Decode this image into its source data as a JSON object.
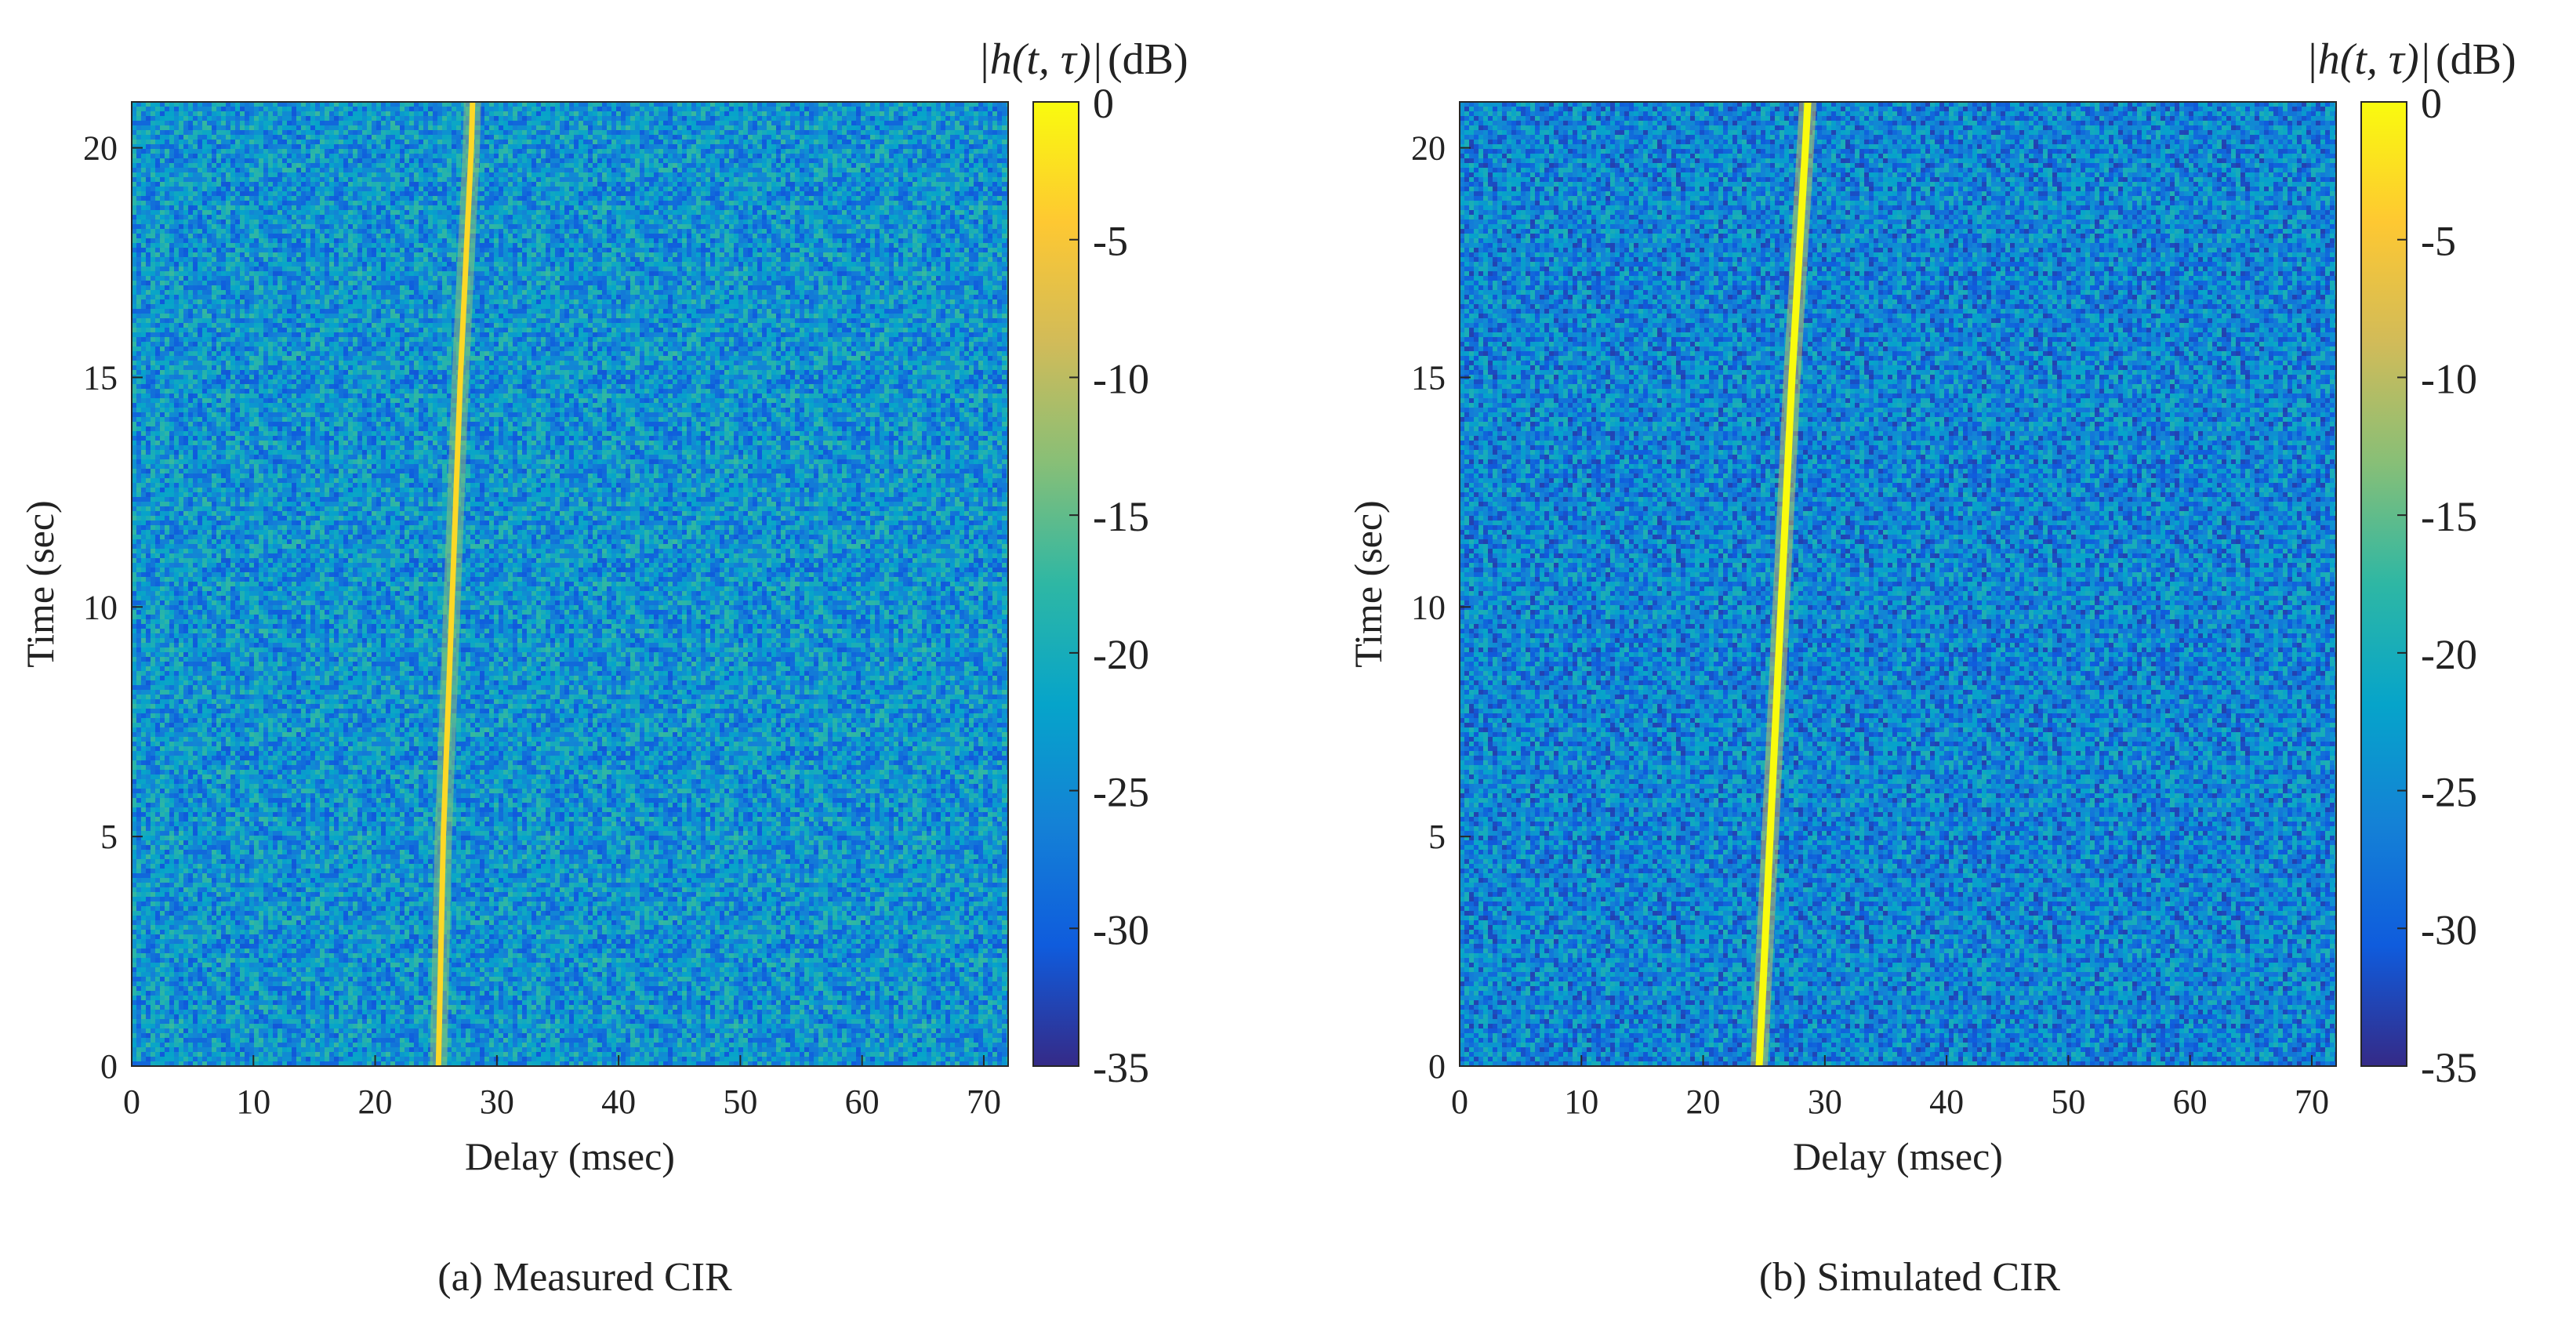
{
  "chart_data": [
    {
      "type": "heatmap",
      "xlabel": "Delay (msec)",
      "ylabel": "Time (sec)",
      "caption": "(a) Measured CIR",
      "colorbar_label_main": "|h(t, τ)|",
      "colorbar_label_unit": "(dB)",
      "xlim": [
        0,
        72
      ],
      "ylim": [
        0,
        21
      ],
      "clim": [
        -35,
        0
      ],
      "x_ticks": [
        0,
        10,
        20,
        30,
        40,
        50,
        60,
        70
      ],
      "y_ticks": [
        0,
        5,
        10,
        15,
        20
      ],
      "c_ticks": [
        0,
        -5,
        -10,
        -15,
        -20,
        -25,
        -30,
        -35
      ],
      "colormap": "parula",
      "background_level_db": -24,
      "ridge_peak_db": -3,
      "ridge": [
        {
          "time": 0,
          "delay": 25.2
        },
        {
          "time": 5,
          "delay": 25.6
        },
        {
          "time": 10,
          "delay": 26.3
        },
        {
          "time": 15,
          "delay": 27.0
        },
        {
          "time": 20,
          "delay": 27.9
        },
        {
          "time": 21,
          "delay": 28.0
        }
      ]
    },
    {
      "type": "heatmap",
      "xlabel": "Delay (msec)",
      "ylabel": "Time (sec)",
      "caption": "(b) Simulated CIR",
      "colorbar_label_main": "|h(t, τ)|",
      "colorbar_label_unit": "(dB)",
      "xlim": [
        0,
        72
      ],
      "ylim": [
        0,
        21
      ],
      "clim": [
        -35,
        0
      ],
      "x_ticks": [
        0,
        10,
        20,
        30,
        40,
        50,
        60,
        70
      ],
      "y_ticks": [
        0,
        5,
        10,
        15,
        20
      ],
      "c_ticks": [
        0,
        -5,
        -10,
        -15,
        -20,
        -25,
        -30,
        -35
      ],
      "colormap": "parula",
      "background_level_db": -26,
      "ridge_peak_db": 0,
      "ridge": [
        {
          "time": 0,
          "delay": 24.6
        },
        {
          "time": 5,
          "delay": 25.5
        },
        {
          "time": 10,
          "delay": 26.4
        },
        {
          "time": 15,
          "delay": 27.3
        },
        {
          "time": 20,
          "delay": 28.4
        },
        {
          "time": 21,
          "delay": 28.6
        }
      ]
    }
  ],
  "colors": {
    "parula_stops": [
      "#352a87",
      "#0f5cdd",
      "#1481d6",
      "#06a4ca",
      "#2eb7a4",
      "#87bf77",
      "#d1bb59",
      "#fec832",
      "#f9fb0e"
    ]
  }
}
